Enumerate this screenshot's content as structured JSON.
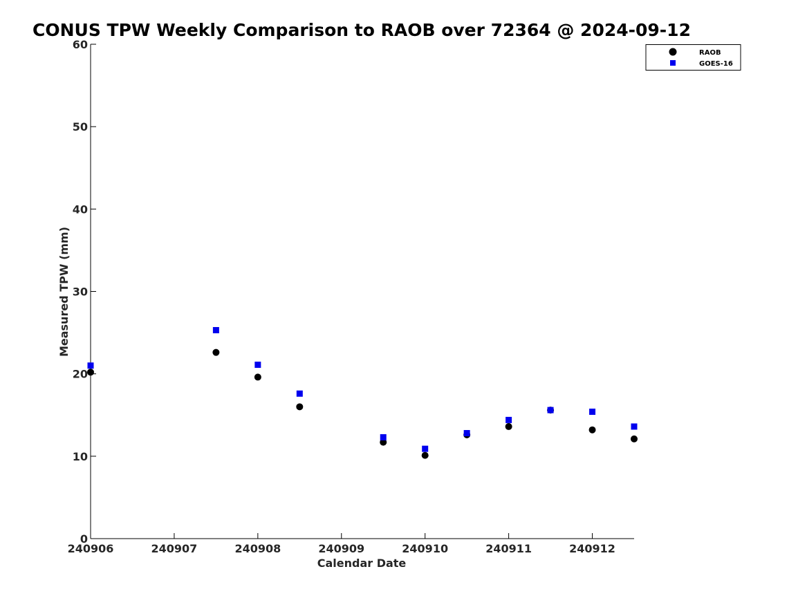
{
  "chart_data": {
    "type": "scatter",
    "title": "CONUS TPW Weekly Comparison to RAOB over 72364 @ 2024-09-12",
    "xlabel": "Calendar Date",
    "ylabel": "Measured TPW (mm)",
    "xlim": [
      240906,
      240912.5
    ],
    "ylim": [
      0,
      60
    ],
    "x_ticks": [
      240906,
      240907,
      240908,
      240909,
      240910,
      240911,
      240912
    ],
    "x_tick_labels": [
      "240906",
      "240907",
      "240908",
      "240909",
      "240910",
      "240911",
      "240912"
    ],
    "y_ticks": [
      0,
      10,
      20,
      30,
      40,
      50,
      60
    ],
    "y_tick_labels": [
      "0",
      "10",
      "20",
      "30",
      "40",
      "50",
      "60"
    ],
    "grid": false,
    "legend_position": "top-right",
    "series": [
      {
        "name": "RAOB",
        "marker": "circle",
        "color": "#000000",
        "x": [
          240906,
          240907.5,
          240908,
          240908.5,
          240909.5,
          240910,
          240910.5,
          240911,
          240911.5,
          240912,
          240912.5
        ],
        "y": [
          20.2,
          22.6,
          19.6,
          16.0,
          11.7,
          10.1,
          12.6,
          13.6,
          15.6,
          13.2,
          12.1
        ]
      },
      {
        "name": "GOES-16",
        "marker": "square",
        "color": "#0000ee",
        "x": [
          240906,
          240907.5,
          240908,
          240908.5,
          240909.5,
          240910,
          240910.5,
          240911,
          240911.5,
          240912,
          240912.5
        ],
        "y": [
          21.0,
          25.3,
          21.1,
          17.6,
          12.3,
          10.9,
          12.8,
          14.4,
          15.6,
          15.4,
          13.6
        ]
      }
    ]
  }
}
